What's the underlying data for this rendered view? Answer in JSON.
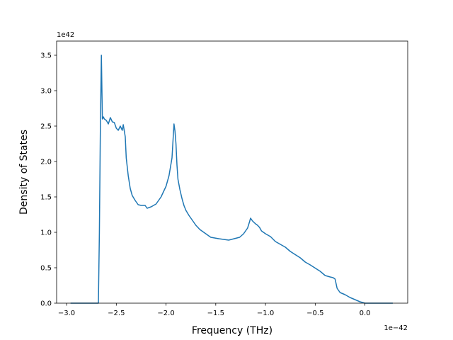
{
  "chart_data": {
    "type": "line",
    "title": "",
    "xlabel": "Frequency (THz)",
    "ylabel": "Density of States",
    "x_offset_text": "1e−42",
    "y_offset_text": "1e42",
    "xlim": [
      -3.1,
      0.43
    ],
    "ylim": [
      0,
      3.7
    ],
    "x_ticks": [
      -3.0,
      -2.5,
      -2.0,
      -1.5,
      -1.0,
      -0.5,
      0.0
    ],
    "x_tick_labels": [
      "−3.0",
      "−2.5",
      "−2.0",
      "−1.5",
      "−1.0",
      "−0.5",
      "0.0"
    ],
    "y_ticks": [
      0.0,
      0.5,
      1.0,
      1.5,
      2.0,
      2.5,
      3.0,
      3.5
    ],
    "y_tick_labels": [
      "0.0",
      "0.5",
      "1.0",
      "1.5",
      "2.0",
      "2.5",
      "3.0",
      "3.5"
    ],
    "grid": false,
    "line_color": "#1f77b4",
    "series": [
      {
        "x": [
          -2.96,
          -2.68,
          -2.67,
          -2.66,
          -2.65,
          -2.64,
          -2.63,
          -2.62,
          -2.6,
          -2.58,
          -2.56,
          -2.54,
          -2.52,
          -2.5,
          -2.48,
          -2.46,
          -2.44,
          -2.43,
          -2.41,
          -2.4,
          -2.38,
          -2.36,
          -2.34,
          -2.31,
          -2.28,
          -2.25,
          -2.21,
          -2.19,
          -2.17,
          -2.15,
          -2.1,
          -2.05,
          -2.0,
          -1.97,
          -1.94,
          -1.92,
          -1.91,
          -1.9,
          -1.89,
          -1.88,
          -1.86,
          -1.84,
          -1.82,
          -1.8,
          -1.77,
          -1.74,
          -1.7,
          -1.66,
          -1.6,
          -1.55,
          -1.47,
          -1.37,
          -1.26,
          -1.22,
          -1.18,
          -1.16,
          -1.15,
          -1.13,
          -1.1,
          -1.08,
          -1.06,
          -1.04,
          -1.0,
          -0.95,
          -0.9,
          -0.85,
          -0.8,
          -0.75,
          -0.65,
          -0.6,
          -0.55,
          -0.45,
          -0.4,
          -0.35,
          -0.32,
          -0.3,
          -0.28,
          -0.25,
          -0.2,
          -0.15,
          -0.1,
          -0.05,
          0.0,
          0.28
        ],
        "values": [
          0.0,
          0.0,
          1.0,
          2.5,
          3.5,
          2.6,
          2.63,
          2.6,
          2.58,
          2.53,
          2.62,
          2.56,
          2.55,
          2.47,
          2.44,
          2.5,
          2.44,
          2.52,
          2.35,
          2.05,
          1.8,
          1.62,
          1.52,
          1.45,
          1.39,
          1.38,
          1.38,
          1.34,
          1.35,
          1.36,
          1.4,
          1.5,
          1.65,
          1.8,
          2.05,
          2.53,
          2.43,
          2.25,
          1.95,
          1.75,
          1.6,
          1.48,
          1.38,
          1.31,
          1.24,
          1.18,
          1.1,
          1.04,
          0.98,
          0.93,
          0.91,
          0.89,
          0.93,
          0.98,
          1.06,
          1.15,
          1.2,
          1.16,
          1.12,
          1.1,
          1.07,
          1.02,
          0.98,
          0.94,
          0.87,
          0.83,
          0.79,
          0.73,
          0.64,
          0.58,
          0.54,
          0.45,
          0.39,
          0.37,
          0.36,
          0.34,
          0.21,
          0.15,
          0.12,
          0.08,
          0.05,
          0.02,
          0.0,
          0.0
        ]
      }
    ]
  }
}
